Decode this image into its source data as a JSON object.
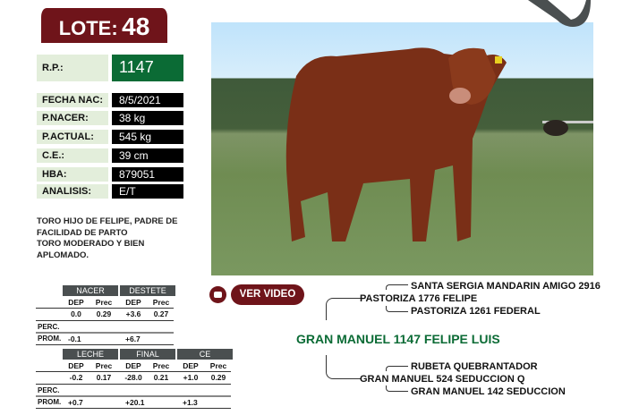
{
  "lote": {
    "label": "LOTE:",
    "number": "48"
  },
  "info": {
    "rp_label": "R.P.:",
    "rp_value": "1147",
    "rows": [
      {
        "label": "FECHA NAC:",
        "value": "8/5/2021"
      },
      {
        "label": "P.NACER:",
        "value": "38 kg"
      },
      {
        "label": "P.ACTUAL:",
        "value": "545 kg"
      },
      {
        "label": "C.E.:",
        "value": "39 cm"
      },
      {
        "label": "HBA:",
        "value": "879051"
      },
      {
        "label": "ANALISIS:",
        "value": "E/T"
      }
    ]
  },
  "description": [
    "TORO HIJO DE FELIPE, PADRE DE",
    "FACILIDAD DE PARTO",
    "TORO MODERADO Y BIEN",
    "APLOMADO."
  ],
  "dep": {
    "dep": "DEP",
    "prec": "Prec",
    "perc": "PERC.",
    "prom": "PROM.",
    "table1": [
      {
        "name": "NACER",
        "dep": "0.0",
        "prec": "0.29",
        "prom": "-0.1"
      },
      {
        "name": "DESTETE",
        "dep": "+3.6",
        "prec": "0.27",
        "prom": "+6.7"
      }
    ],
    "table2": [
      {
        "name": "LECHE",
        "dep": "-0.2",
        "prec": "0.17",
        "prom": "+0.7"
      },
      {
        "name": "FINAL",
        "dep": "-28.0",
        "prec": "0.21",
        "prom": "+20.1"
      },
      {
        "name": "CE",
        "dep": "+1.0",
        "prec": "0.29",
        "prom": "+1.3"
      }
    ]
  },
  "video": {
    "label": "VER VIDEO",
    "icon": "youtube-icon"
  },
  "pedigree": {
    "animal": "GRAN MANUEL 1147 FELIPE LUIS",
    "sire": "PASTORIZA 1776 FELIPE",
    "sire_sire": "SANTA SERGIA MANDARIN AMIGO 2916",
    "sire_dam": "PASTORIZA 1261 FEDERAL",
    "dam": "GRAN MANUEL 524 SEDUCCION Q",
    "dam_sire": "RUBETA QUEBRANTADOR",
    "dam_dam": "GRAN MANUEL 142 SEDUCCION"
  },
  "colors": {
    "brand": "#6f141a",
    "green": "#0b6b35"
  }
}
